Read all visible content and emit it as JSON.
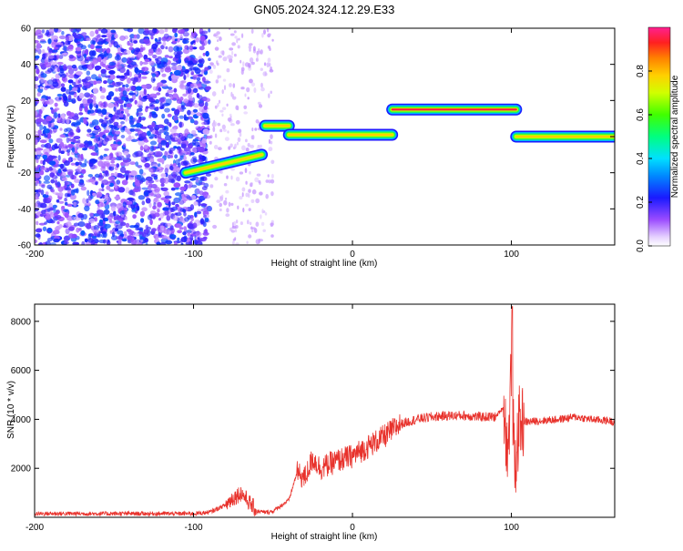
{
  "title": "GN05.2024.324.12.29.E33",
  "colors": {
    "snr_line": "#e8322c",
    "spectro_low": "#7a3cf0",
    "spectro_high": "#ff2a1a"
  },
  "chart_data": [
    {
      "type": "heatmap",
      "xlabel": "Height of straight line (km)",
      "ylabel": "Frequency (Hz)",
      "xlim": [
        -200,
        165
      ],
      "ylim": [
        -60,
        60
      ],
      "xticks": [
        "-200",
        "-100",
        "0",
        "100"
      ],
      "xtick_values": [
        -200,
        -100,
        0,
        100
      ],
      "yticks": [
        "-60",
        "-40",
        "-20",
        "0",
        "20",
        "40",
        "60"
      ],
      "ytick_values": [
        -60,
        -40,
        -20,
        0,
        20,
        40,
        60
      ],
      "grid": false,
      "colorbar": {
        "label": "Normalized spectral amplitude",
        "range": [
          0,
          1
        ],
        "ticks": [
          "0.0",
          "0.2",
          "0.4",
          "0.6",
          "0.8"
        ],
        "tick_values": [
          0.0,
          0.2,
          0.4,
          0.6,
          0.8
        ],
        "placement": "right"
      },
      "ridge_segments": [
        {
          "x_start": -105,
          "x_end": -57,
          "freq_start": -20,
          "freq_end": -10,
          "amplitude": 0.45
        },
        {
          "x_start": -55,
          "x_end": -40,
          "freq_start": 6,
          "freq_end": 6,
          "amplitude": 0.55
        },
        {
          "x_start": -40,
          "x_end": 25,
          "freq_start": 1,
          "freq_end": 1,
          "amplitude": 0.65
        },
        {
          "x_start": 25,
          "x_end": 103,
          "freq_start": 15,
          "freq_end": 15,
          "amplitude": 0.95
        },
        {
          "x_start": 103,
          "x_end": 165,
          "freq_start": 0,
          "freq_end": 0,
          "amplitude": 0.7
        }
      ]
    },
    {
      "type": "line",
      "xlabel": "Height of straight line (km)",
      "ylabel": "SNR (10 * v/v)",
      "xlim": [
        -200,
        165
      ],
      "ylim": [
        0,
        8700
      ],
      "xticks": [
        "-200",
        "-100",
        "0",
        "100"
      ],
      "xtick_values": [
        -200,
        -100,
        0,
        100
      ],
      "yticks": [
        "2000",
        "4000",
        "6000",
        "8000"
      ],
      "ytick_values": [
        2000,
        4000,
        6000,
        8000
      ],
      "grid": false,
      "series": [
        {
          "x": [
            -200,
            -180,
            -160,
            -140,
            -120,
            -100,
            -90,
            -80,
            -75,
            -70,
            -65,
            -60,
            -55,
            -50,
            -40,
            -35,
            -30,
            -25,
            -20,
            -10,
            0,
            10,
            20,
            30,
            40,
            50,
            60,
            70,
            80,
            90,
            95,
            98,
            100,
            102,
            105,
            110,
            120,
            130,
            140,
            150,
            160,
            165
          ],
          "values": [
            150,
            150,
            150,
            150,
            150,
            150,
            200,
            500,
            800,
            1000,
            600,
            250,
            200,
            250,
            700,
            1800,
            1600,
            2400,
            2000,
            2300,
            2500,
            2900,
            3300,
            3800,
            4000,
            4100,
            4150,
            4150,
            4100,
            4100,
            4500,
            2500,
            6500,
            1800,
            3900,
            3900,
            3950,
            4000,
            4100,
            4000,
            3950,
            3900
          ]
        }
      ]
    }
  ]
}
